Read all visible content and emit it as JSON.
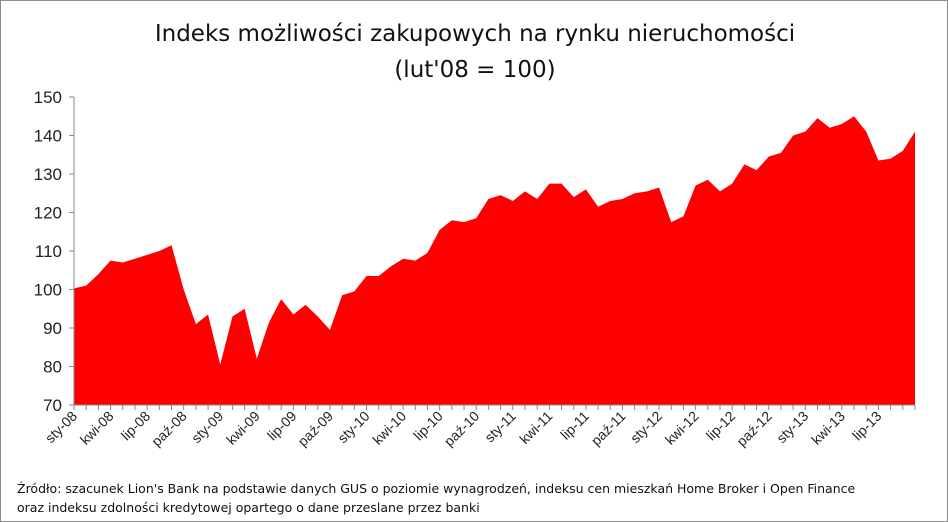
{
  "chart_data": {
    "type": "area",
    "title": "Indeks możliwości zakupowych na rynku nieruchomości",
    "subtitle": "(lut'08 = 100)",
    "xlabel": "",
    "ylabel": "",
    "ylim": [
      70,
      150
    ],
    "yticks": [
      70,
      80,
      90,
      100,
      110,
      120,
      130,
      140,
      150
    ],
    "grid": false,
    "legend": "none",
    "fill_color": "#ff0000",
    "x_tick_labels": [
      "sty-08",
      "kwi-08",
      "lip-08",
      "paź-08",
      "sty-09",
      "kwi-09",
      "lip-09",
      "paź-09",
      "sty-10",
      "kwi-10",
      "lip-10",
      "paź-10",
      "sty-11",
      "kwi-11",
      "lip-11",
      "paź-11",
      "sty-12",
      "kwi-12",
      "lip-12",
      "paź-12",
      "sty-13",
      "kwi-13",
      "lip-13"
    ],
    "series": [
      {
        "values": [
          100.3,
          101,
          104,
          107.5,
          107,
          108,
          109,
          110,
          111.5,
          100,
          91,
          93.5,
          80.5,
          93,
          95,
          82,
          91.5,
          97.5,
          93.5,
          96,
          93,
          89.5,
          98.5,
          99.5,
          103.5,
          103.5,
          106,
          108,
          107.5,
          109.5,
          115.5,
          118,
          117.5,
          118.5,
          123.5,
          124.5,
          123,
          125.5,
          123.5,
          127.5,
          127.5,
          124,
          126,
          121.5,
          123,
          123.5,
          125,
          125.5,
          126.5,
          117.5,
          119,
          127,
          128.5,
          125.5,
          127.5,
          132.5,
          131,
          134.5,
          135.5,
          140,
          141,
          144.5,
          142,
          143,
          145,
          141,
          133.5,
          134,
          136,
          141
        ]
      }
    ]
  },
  "source_line1": "Źródło: szacunek Lion's Bank na podstawie danych GUS o poziomie wynagrodzeń, indeksu cen mieszkań Home Broker i Open Finance",
  "source_line2": "oraz indeksu zdolności kredytowej opartego o dane przeslane przez banki"
}
